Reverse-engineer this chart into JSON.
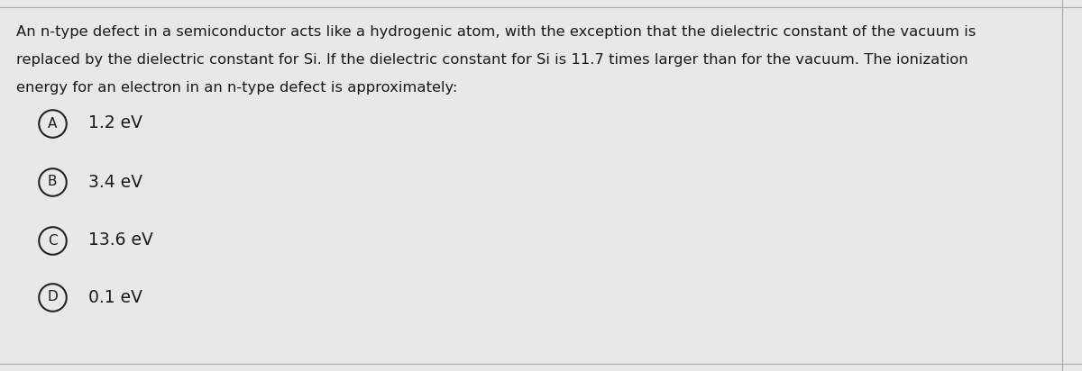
{
  "background_color": "#e8e8e8",
  "text_color": "#1a1a1a",
  "question_text_line1": "An n-type defect in a semiconductor acts like a hydrogenic atom, with the exception that the dielectric constant of the vacuum is",
  "question_text_line2": "replaced by the dielectric constant for Si. If the dielectric constant for Si is 11.7 times larger than for the vacuum. The ionization",
  "question_text_line3": "energy for an electron in an n-type defect is approximately:",
  "options": [
    {
      "label": "A",
      "text": "1.2 eV"
    },
    {
      "label": "B",
      "text": "3.4 eV"
    },
    {
      "label": "C",
      "text": "13.6 eV"
    },
    {
      "label": "D",
      "text": "0.1 eV"
    }
  ],
  "question_fontsize": 11.8,
  "option_fontsize": 13.5,
  "divider_color": "#aaaaaa",
  "circle_color": "#222222"
}
